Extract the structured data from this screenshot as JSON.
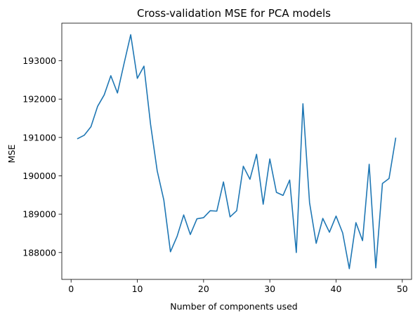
{
  "chart_data": {
    "type": "line",
    "title": "Cross-validation MSE for PCA models",
    "xlabel": "Number of components used",
    "ylabel": "MSE",
    "xlim": [
      -1.4,
      51.4
    ],
    "ylim": [
      187300,
      193980
    ],
    "xticks": [
      0,
      10,
      20,
      30,
      40,
      50
    ],
    "yticks": [
      188000,
      189000,
      190000,
      191000,
      192000,
      193000
    ],
    "grid": false,
    "line_color": "#1f77b4",
    "series": [
      {
        "x": [
          1,
          2,
          3,
          4,
          5,
          6,
          7,
          8,
          9,
          10,
          11,
          12,
          13,
          14,
          15,
          16,
          17,
          18,
          19,
          20,
          21,
          22,
          23,
          24,
          25,
          26,
          27,
          28,
          29,
          30,
          31,
          32,
          33,
          34,
          35,
          36,
          37,
          38,
          39,
          40,
          41,
          42,
          43,
          44,
          45,
          46,
          47,
          48,
          49
        ],
        "values": [
          190970,
          191060,
          191280,
          191810,
          192110,
          192610,
          192160,
          192930,
          193680,
          192540,
          192860,
          191340,
          190130,
          189370,
          188020,
          188420,
          188980,
          188470,
          188880,
          188910,
          189090,
          189080,
          189840,
          188930,
          189090,
          190250,
          189910,
          190560,
          189260,
          190440,
          189570,
          189490,
          189890,
          188000,
          191880,
          189300,
          188240,
          188890,
          188530,
          188950,
          188510,
          187580,
          188780,
          188310,
          190300,
          187600,
          189800,
          189930,
          190980
        ]
      }
    ]
  }
}
